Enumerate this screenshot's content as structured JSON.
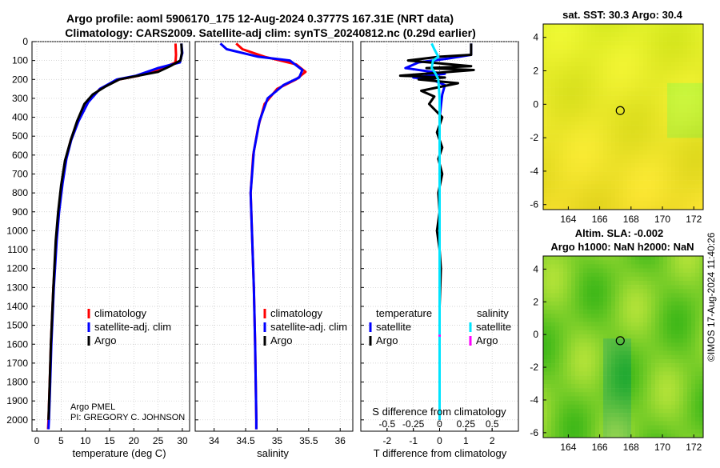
{
  "title": {
    "line1": "Argo profile: aoml 5906170_175 12-Aug-2024 0.3777S 167.31E (NRT data)",
    "line2": "Climatology: CARS2009. Satellite-adj clim: synTS_20240812.nc (0.29d earlier)"
  },
  "colors": {
    "climatology": "#ff0000",
    "satellite": "#0000ff",
    "argo": "#000000",
    "sal_satellite": "#00e5ff",
    "sal_argo": "#ff00ff"
  },
  "chart_data": [
    {
      "id": "temperature",
      "type": "line",
      "xlabel": "temperature (deg C)",
      "ylabel": "",
      "xlim": [
        -1,
        31.5
      ],
      "ylim": [
        2060,
        0
      ],
      "yreversed": true,
      "xticks": [
        0,
        5,
        10,
        15,
        20,
        25,
        30
      ],
      "yticks": [
        0,
        100,
        200,
        300,
        400,
        500,
        600,
        700,
        800,
        900,
        1000,
        1100,
        1200,
        1300,
        1400,
        1500,
        1600,
        1700,
        1800,
        1900,
        2000
      ],
      "legend": [
        "climatology",
        "satellite-adj. clim",
        "Argo"
      ],
      "annotation": [
        "Argo PMEL",
        "PI: GREGORY C. JOHNSON"
      ],
      "series": [
        {
          "name": "climatology",
          "color": "#ff0000",
          "points": [
            [
              28.6,
              10
            ],
            [
              28.7,
              70
            ],
            [
              28.6,
              110
            ],
            [
              26,
              140
            ],
            [
              21,
              180
            ],
            [
              17,
              200
            ],
            [
              13,
              250
            ],
            [
              10.5,
              320
            ],
            [
              8.5,
              420
            ],
            [
              7,
              520
            ],
            [
              6,
              620
            ],
            [
              5.2,
              750
            ],
            [
              4.5,
              900
            ],
            [
              4,
              1050
            ],
            [
              3.4,
              1300
            ],
            [
              2.9,
              1600
            ],
            [
              2.6,
              1850
            ],
            [
              2.4,
              2000
            ],
            [
              2.3,
              2050
            ]
          ]
        },
        {
          "name": "satellite-adj. clim",
          "color": "#0000ff",
          "points": [
            [
              29.8,
              10
            ],
            [
              30,
              60
            ],
            [
              29.5,
              110
            ],
            [
              25,
              140
            ],
            [
              20.5,
              180
            ],
            [
              16.5,
              200
            ],
            [
              13,
              250
            ],
            [
              10.6,
              320
            ],
            [
              8.6,
              420
            ],
            [
              7.1,
              520
            ],
            [
              6.1,
              620
            ],
            [
              5.3,
              750
            ],
            [
              4.6,
              900
            ],
            [
              4.1,
              1050
            ],
            [
              3.5,
              1300
            ],
            [
              3,
              1600
            ],
            [
              2.7,
              1850
            ],
            [
              2.5,
              2000
            ],
            [
              2.4,
              2050
            ]
          ]
        },
        {
          "name": "Argo",
          "color": "#000000",
          "points": [
            [
              29.8,
              10
            ],
            [
              29.9,
              60
            ],
            [
              29.6,
              100
            ],
            [
              27.5,
              130
            ],
            [
              25,
              160
            ],
            [
              20,
              185
            ],
            [
              17,
              200
            ],
            [
              14,
              240
            ],
            [
              11.5,
              280
            ],
            [
              9.8,
              330
            ],
            [
              8.3,
              420
            ],
            [
              7,
              520
            ],
            [
              5.8,
              630
            ],
            [
              5,
              760
            ],
            [
              4.4,
              900
            ],
            [
              3.9,
              1050
            ],
            [
              3.4,
              1300
            ],
            [
              2.9,
              1600
            ],
            [
              2.6,
              1850
            ],
            [
              2.4,
              2000
            ]
          ]
        }
      ]
    },
    {
      "id": "salinity",
      "type": "line",
      "xlabel": "salinity",
      "ylabel": "",
      "xlim": [
        33.7,
        36.2
      ],
      "ylim": [
        2060,
        0
      ],
      "yreversed": true,
      "xticks": [
        34,
        34.5,
        35,
        35.5,
        36
      ],
      "series": [
        {
          "name": "climatology",
          "color": "#ff0000",
          "points": [
            [
              34.35,
              10
            ],
            [
              34.45,
              40
            ],
            [
              34.8,
              80
            ],
            [
              35.3,
              120
            ],
            [
              35.45,
              160
            ],
            [
              35.3,
              200
            ],
            [
              35.0,
              250
            ],
            [
              34.8,
              330
            ],
            [
              34.7,
              450
            ],
            [
              34.62,
              600
            ],
            [
              34.58,
              800
            ],
            [
              34.6,
              1000
            ],
            [
              34.63,
              1300
            ],
            [
              34.65,
              1600
            ],
            [
              34.67,
              2000
            ],
            [
              34.67,
              2050
            ]
          ]
        },
        {
          "name": "satellite-adj. clim",
          "color": "#0000ff",
          "points": [
            [
              34.1,
              10
            ],
            [
              34.2,
              40
            ],
            [
              34.7,
              80
            ],
            [
              35.2,
              100
            ],
            [
              35.4,
              150
            ],
            [
              35.35,
              190
            ],
            [
              35.1,
              230
            ],
            [
              34.85,
              300
            ],
            [
              34.72,
              420
            ],
            [
              34.63,
              580
            ],
            [
              34.58,
              800
            ],
            [
              34.6,
              1000
            ],
            [
              34.63,
              1300
            ],
            [
              34.65,
              1600
            ],
            [
              34.67,
              2000
            ],
            [
              34.67,
              2050
            ]
          ]
        }
      ]
    },
    {
      "id": "difference",
      "type": "line",
      "xlabel": "T difference from climatology",
      "xlabel_top": "S difference from climatology",
      "xlim": [
        -3,
        3
      ],
      "ylim": [
        2060,
        0
      ],
      "yreversed": true,
      "xticks": [
        -2,
        -1,
        0,
        1,
        2
      ],
      "xtick_labels": [
        "-2",
        "-1",
        "0",
        "1",
        "2"
      ],
      "sticks": [
        -0.5,
        -0.25,
        0,
        0.25,
        0.5
      ],
      "stick_labels": [
        "-0.5",
        "-0.25",
        "0",
        "0.25",
        "0.5"
      ],
      "legend_titles": [
        "temperature",
        "salinity"
      ],
      "legend_t": [
        "satellite",
        "Argo"
      ],
      "legend_s": [
        "satellite",
        "Argo"
      ],
      "series": [
        {
          "name": "temperature satellite",
          "color": "#0000ff",
          "points": [
            [
              1.2,
              10
            ],
            [
              1.2,
              70
            ],
            [
              0.3,
              90
            ],
            [
              -0.8,
              110
            ],
            [
              -1.3,
              140
            ],
            [
              0.2,
              170
            ],
            [
              -1,
              190
            ],
            [
              -0.3,
              200
            ],
            [
              0.2,
              230
            ],
            [
              0.1,
              280
            ],
            [
              0,
              400
            ],
            [
              0,
              600
            ],
            [
              0,
              800
            ],
            [
              0,
              1200
            ],
            [
              0,
              1600
            ],
            [
              0,
              2000
            ]
          ]
        },
        {
          "name": "temperature Argo",
          "color": "#000000",
          "points": [
            [
              1.2,
              10
            ],
            [
              1.2,
              70
            ],
            [
              0,
              80
            ],
            [
              -1.2,
              100
            ],
            [
              1.2,
              130
            ],
            [
              -0.5,
              140
            ],
            [
              1.3,
              150
            ],
            [
              -1.5,
              180
            ],
            [
              0.2,
              190
            ],
            [
              -0.8,
              200
            ],
            [
              0.7,
              220
            ],
            [
              -0.7,
              260
            ],
            [
              -0.2,
              290
            ],
            [
              -0.4,
              330
            ],
            [
              0.1,
              400
            ],
            [
              -0.1,
              480
            ],
            [
              0.1,
              560
            ],
            [
              -0.05,
              620
            ],
            [
              0.1,
              700
            ],
            [
              -0.05,
              800
            ],
            [
              0,
              900
            ],
            [
              -0.1,
              1000
            ],
            [
              0,
              1100
            ],
            [
              0.05,
              1200
            ],
            [
              0,
              1400
            ],
            [
              0,
              1600
            ],
            [
              0,
              2000
            ]
          ]
        },
        {
          "name": "salinity satellite",
          "color": "#00e5ff",
          "points": [
            [
              -0.3,
              10
            ],
            [
              -0.2,
              40
            ],
            [
              -0.05,
              80
            ],
            [
              -0.25,
              100
            ],
            [
              -0.3,
              140
            ],
            [
              -0.15,
              170
            ],
            [
              -0.05,
              200
            ],
            [
              0,
              300
            ],
            [
              0,
              500
            ],
            [
              0,
              800
            ],
            [
              0,
              1200
            ],
            [
              0,
              1600
            ],
            [
              0,
              2000
            ]
          ]
        },
        {
          "name": "salinity Argo",
          "color": "#ff00ff",
          "points": [
            [
              0,
              1550
            ],
            [
              0,
              1560
            ]
          ]
        }
      ]
    },
    {
      "id": "sst-map",
      "type": "heatmap",
      "title": "sat. SST: 30.3 Argo: 30.4",
      "xticks": [
        164,
        166,
        168,
        170,
        172
      ],
      "yticks": [
        4,
        2,
        0,
        -2,
        -4,
        -6
      ],
      "xlim": [
        162.4,
        172.6
      ],
      "ylim": [
        -6.3,
        4.8
      ],
      "marker": [
        167.31,
        -0.3777
      ]
    },
    {
      "id": "sla-map",
      "type": "heatmap",
      "title1": "Altim. SLA: -0.002",
      "title2": "Argo h1000: NaN h2000: NaN",
      "xticks": [
        164,
        166,
        168,
        170,
        172
      ],
      "yticks": [
        4,
        2,
        0,
        -2,
        -4,
        -6
      ],
      "xlim": [
        162.4,
        172.6
      ],
      "ylim": [
        -6.3,
        4.8
      ],
      "marker": [
        167.31,
        -0.3777
      ]
    }
  ],
  "copyright": "©IMOS 17-Aug-2024 11:40:26"
}
